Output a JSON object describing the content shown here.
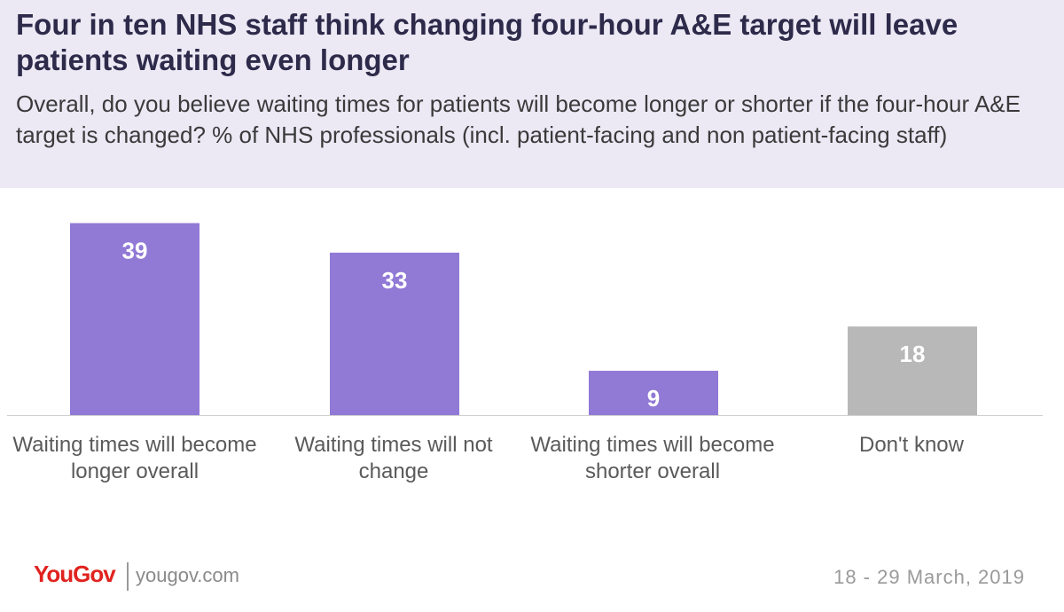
{
  "header": {
    "title": "Four in ten NHS staff think changing four-hour A&E target will leave patients waiting even longer",
    "subtitle": "Overall, do you believe waiting times for patients will become longer or shorter if the four-hour A&E target is changed? % of NHS professionals (incl. patient-facing and non patient-facing staff)"
  },
  "chart_data": {
    "type": "bar",
    "title": "Four in ten NHS staff think changing four-hour A&E target will leave patients waiting even longer",
    "subtitle": "Overall, do you believe waiting times for patients will become longer or shorter if the four-hour A&E target is changed? % of NHS professionals (incl. patient-facing and non patient-facing staff)",
    "categories": [
      "Waiting times will become longer overall",
      "Waiting times will not change",
      "Waiting times will become shorter overall",
      "Don't know"
    ],
    "values": [
      39,
      33,
      9,
      18
    ],
    "colors": [
      "#9179d6",
      "#9179d6",
      "#9179d6",
      "#b8b8b8"
    ],
    "ylim": [
      0,
      40
    ],
    "grid": false,
    "legend": "none",
    "data_labels": true
  },
  "footer": {
    "logo_text": "YouGov",
    "site": "yougov.com",
    "date": "18 - 29 March, 2019"
  }
}
